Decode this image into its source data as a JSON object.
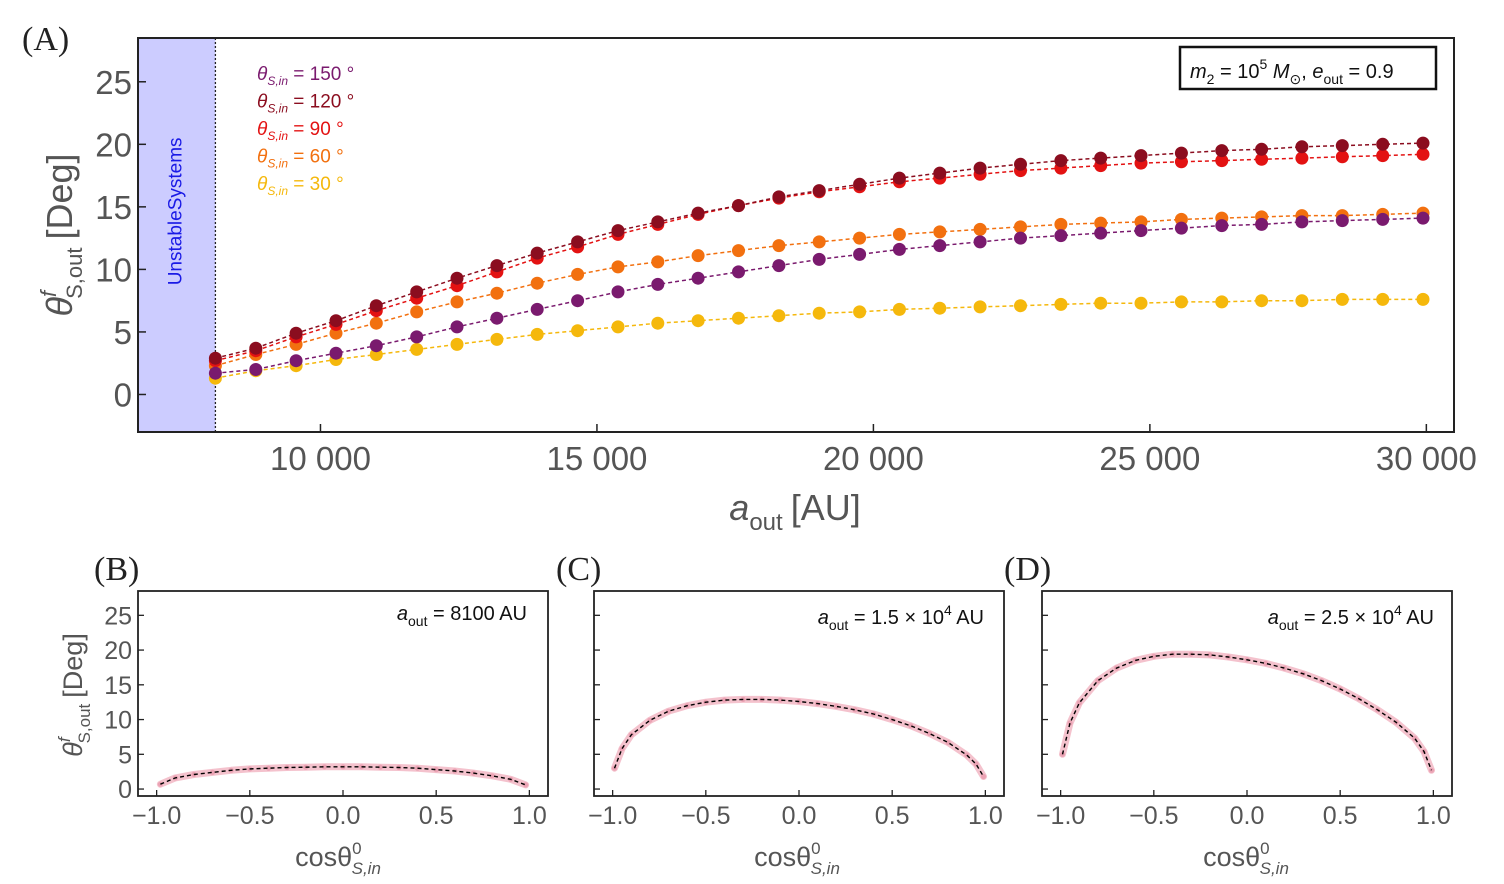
{
  "chart_data": [
    {
      "panel": "(A)",
      "type": "scatter",
      "x_prefix": "a",
      "x_sub": "out",
      "x_unit": "[AU]",
      "y_main": "θ",
      "y_sup": "f",
      "y_sub": "S,out",
      "y_unit": "[Deg]",
      "xlim": [
        6700,
        30500
      ],
      "ylim": [
        -3,
        28.5
      ],
      "xticks": [
        10000,
        15000,
        20000,
        25000,
        30000
      ],
      "xtick_labels": [
        "10 000",
        "15 000",
        "20 000",
        "25 000",
        "30 000"
      ],
      "yticks": [
        0,
        5,
        10,
        15,
        20,
        25
      ],
      "unstable_band": {
        "x0": 6700,
        "x1": 8100,
        "label": "UnstableSystems",
        "color": "#ccccff"
      },
      "annotation": {
        "m2_prefix": "m",
        "m2_sub": "2",
        "m2_eq": " = 10",
        "m2_exp": "5",
        "m2_unit": " M",
        "m2_unit_sub": "⊙",
        "sep": ", ",
        "e_prefix": "e",
        "e_sub": "out",
        "e_eq": " = 0.9"
      },
      "x": [
        8100,
        8830,
        9560,
        10280,
        11010,
        11740,
        12470,
        13190,
        13920,
        14650,
        15380,
        16100,
        16830,
        17560,
        18290,
        19020,
        19750,
        20470,
        21200,
        21930,
        22660,
        23390,
        24110,
        24840,
        25570,
        26300,
        27020,
        27750,
        28480,
        29210,
        29940
      ],
      "series": [
        {
          "name": "θ",
          "sub": "S,in",
          "eq": " = 150 °",
          "color": "#7a1a6e",
          "values": [
            1.7,
            2.0,
            2.7,
            3.3,
            3.9,
            4.6,
            5.4,
            6.1,
            6.8,
            7.5,
            8.2,
            8.8,
            9.3,
            9.8,
            10.3,
            10.8,
            11.2,
            11.6,
            11.9,
            12.2,
            12.5,
            12.7,
            12.9,
            13.1,
            13.3,
            13.5,
            13.6,
            13.8,
            13.9,
            14.0,
            14.1
          ]
        },
        {
          "name": "θ",
          "sub": "S,in",
          "eq": " = 120 °",
          "color": "#8b0d1f",
          "values": [
            2.9,
            3.7,
            4.9,
            5.9,
            7.1,
            8.2,
            9.3,
            10.3,
            11.3,
            12.2,
            13.1,
            13.8,
            14.5,
            15.1,
            15.8,
            16.3,
            16.8,
            17.3,
            17.7,
            18.1,
            18.4,
            18.7,
            18.9,
            19.1,
            19.3,
            19.5,
            19.6,
            19.8,
            19.9,
            20.0,
            20.1
          ]
        },
        {
          "name": "θ",
          "sub": "S,in",
          "eq": " = 90 °",
          "color": "#e31212",
          "values": [
            2.7,
            3.5,
            4.6,
            5.6,
            6.7,
            7.7,
            8.7,
            9.8,
            10.9,
            11.8,
            12.8,
            13.6,
            14.4,
            15.1,
            15.7,
            16.2,
            16.6,
            17.0,
            17.3,
            17.6,
            17.9,
            18.1,
            18.3,
            18.5,
            18.6,
            18.7,
            18.8,
            18.9,
            19.0,
            19.1,
            19.2
          ]
        },
        {
          "name": "θ",
          "sub": "S,in",
          "eq": " = 60 °",
          "color": "#f2700f",
          "values": [
            2.3,
            3.2,
            4.0,
            4.9,
            5.7,
            6.6,
            7.4,
            8.1,
            8.9,
            9.6,
            10.2,
            10.6,
            11.1,
            11.5,
            11.9,
            12.2,
            12.5,
            12.8,
            13.0,
            13.2,
            13.4,
            13.6,
            13.7,
            13.8,
            14.0,
            14.1,
            14.2,
            14.3,
            14.3,
            14.4,
            14.5
          ]
        },
        {
          "name": "θ",
          "sub": "S,in",
          "eq": " = 30 °",
          "color": "#f5b80c",
          "values": [
            1.3,
            1.9,
            2.3,
            2.8,
            3.2,
            3.6,
            4.0,
            4.4,
            4.8,
            5.1,
            5.4,
            5.7,
            5.9,
            6.1,
            6.3,
            6.5,
            6.6,
            6.8,
            6.9,
            7.0,
            7.1,
            7.2,
            7.3,
            7.3,
            7.4,
            7.4,
            7.5,
            7.5,
            7.6,
            7.6,
            7.6
          ]
        }
      ]
    },
    {
      "panel": "(B)",
      "type": "line",
      "annotation": {
        "a_prefix": "a",
        "a_sub": "out",
        "a_eq": " = 8100 AU"
      },
      "xlim": [
        -1.1,
        1.1
      ],
      "ylim": [
        -1,
        28.5
      ],
      "xticks": [
        -1.0,
        -0.5,
        0.0,
        0.5,
        1.0
      ],
      "xtick_labels": [
        "−1.0",
        "−0.5",
        "0.0",
        "0.5",
        "1.0"
      ],
      "yticks": [
        0,
        5,
        10,
        15,
        20,
        25
      ],
      "x": [
        -0.98,
        -0.9,
        -0.8,
        -0.7,
        -0.6,
        -0.5,
        -0.4,
        -0.3,
        -0.2,
        -0.1,
        0.0,
        0.1,
        0.2,
        0.3,
        0.4,
        0.5,
        0.6,
        0.7,
        0.8,
        0.9,
        0.98
      ],
      "values": [
        0.7,
        1.6,
        2.1,
        2.4,
        2.7,
        2.9,
        3.0,
        3.1,
        3.15,
        3.2,
        3.2,
        3.2,
        3.15,
        3.1,
        3.0,
        2.8,
        2.6,
        2.3,
        1.9,
        1.4,
        0.6
      ]
    },
    {
      "panel": "(C)",
      "type": "line",
      "annotation": {
        "a_prefix": "a",
        "a_sub": "out",
        "a_eq": " = 1.5 × 10",
        "a_exp": "4",
        "a_unit": " AU"
      },
      "xlim": [
        -1.1,
        1.1
      ],
      "ylim": [
        -1,
        28.5
      ],
      "xticks": [
        -1.0,
        -0.5,
        0.0,
        0.5,
        1.0
      ],
      "xtick_labels": [
        "−1.0",
        "−0.5",
        "0.0",
        "0.5",
        "1.0"
      ],
      "x": [
        -0.99,
        -0.95,
        -0.9,
        -0.8,
        -0.7,
        -0.6,
        -0.5,
        -0.4,
        -0.3,
        -0.2,
        -0.1,
        0.0,
        0.1,
        0.2,
        0.3,
        0.4,
        0.5,
        0.6,
        0.7,
        0.8,
        0.9,
        0.95,
        0.99
      ],
      "values": [
        3.0,
        5.8,
        7.8,
        9.9,
        11.2,
        12.0,
        12.5,
        12.8,
        12.9,
        12.9,
        12.8,
        12.6,
        12.3,
        11.9,
        11.4,
        10.8,
        10.0,
        9.1,
        8.0,
        6.7,
        4.9,
        3.6,
        1.8
      ]
    },
    {
      "panel": "(D)",
      "type": "line",
      "annotation": {
        "a_prefix": "a",
        "a_sub": "out",
        "a_eq": " = 2.5 × 10",
        "a_exp": "4",
        "a_unit": " AU"
      },
      "xlim": [
        -1.1,
        1.1
      ],
      "ylim": [
        -1,
        28.5
      ],
      "xticks": [
        -1.0,
        -0.5,
        0.0,
        0.5,
        1.0
      ],
      "xtick_labels": [
        "−1.0",
        "−0.5",
        "0.0",
        "0.5",
        "1.0"
      ],
      "x": [
        -0.99,
        -0.95,
        -0.9,
        -0.8,
        -0.7,
        -0.6,
        -0.5,
        -0.4,
        -0.3,
        -0.2,
        -0.1,
        0.0,
        0.1,
        0.2,
        0.3,
        0.4,
        0.5,
        0.6,
        0.7,
        0.8,
        0.9,
        0.95,
        0.99
      ],
      "values": [
        5.0,
        9.5,
        12.4,
        15.6,
        17.4,
        18.5,
        19.1,
        19.4,
        19.4,
        19.3,
        19.0,
        18.6,
        18.1,
        17.4,
        16.6,
        15.6,
        14.4,
        13.0,
        11.4,
        9.6,
        7.3,
        5.4,
        2.7
      ]
    }
  ],
  "small_axes": {
    "x_main": "cosθ",
    "x_sup": "0",
    "x_sub": "S,in",
    "y_main": "θ",
    "y_sup": "f",
    "y_sub": "S,out",
    "y_unit": "[Deg]"
  },
  "colors": {
    "curve": "#000000",
    "band": "#f2b7c4"
  }
}
